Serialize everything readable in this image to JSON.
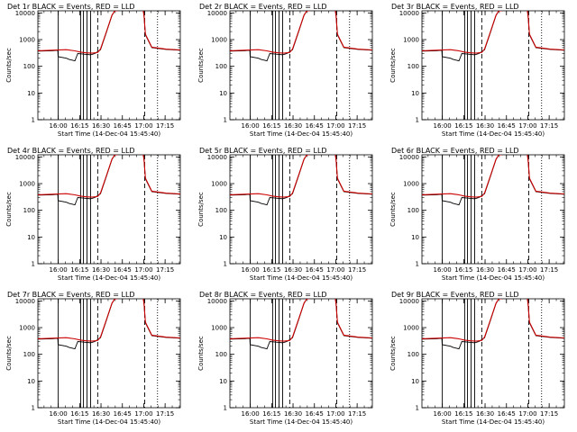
{
  "chart_data": {
    "type": "line",
    "layout": "3x3 grid",
    "title_template": "Det {n}r  BLACK = Events, RED = LLD",
    "panel_titles": [
      "Det 1r  BLACK = Events, RED = LLD",
      "Det 2r  BLACK = Events, RED = LLD",
      "Det 3r  BLACK = Events, RED = LLD",
      "Det 4r  BLACK = Events, RED = LLD",
      "Det 5r  BLACK = Events, RED = LLD",
      "Det 6r  BLACK = Events, RED = LLD",
      "Det 7r  BLACK = Events, RED = LLD",
      "Det 8r  BLACK = Events, RED = LLD",
      "Det 9r  BLACK = Events, RED = LLD"
    ],
    "xlabel": "Start Time (14-Dec-04 15:45:40)",
    "ylabel": "Counts/sec",
    "yscale": "log",
    "ylim": [
      1,
      12000
    ],
    "xlim_minutes_after_start": [
      0,
      100
    ],
    "x_ticks": [
      "16:00",
      "16:15",
      "16:30",
      "16:45",
      "17:00",
      "17:15"
    ],
    "x_tick_minutes": [
      14.33,
      29.33,
      44.33,
      59.33,
      74.33,
      89.33
    ],
    "y_ticks": [
      "1",
      "10",
      "100",
      "1000",
      "10000"
    ],
    "y_tick_values": [
      1,
      10,
      100,
      1000,
      10000
    ],
    "series": [
      {
        "name": "Events",
        "color": "#000000",
        "x": [
          0,
          10,
          14,
          14.2,
          20,
          22,
          24,
          26,
          28,
          31,
          34,
          37,
          40,
          44,
          48,
          52,
          54,
          56,
          56.5,
          74,
          74.5,
          75.5,
          80,
          90,
          100
        ],
        "y": [
          370,
          380,
          400,
          230,
          200,
          180,
          170,
          160,
          300,
          290,
          280,
          270,
          300,
          420,
          1800,
          8000,
          12000,
          12000,
          null,
          12000,
          8000,
          1500,
          500,
          430,
          400
        ]
      },
      {
        "name": "LLD",
        "color": "#cc0000",
        "x": [
          0,
          10,
          20,
          26,
          30,
          34,
          38,
          42,
          44,
          48,
          52,
          54,
          56,
          56.5,
          74,
          74.5,
          75.5,
          80,
          90,
          100
        ],
        "y": [
          380,
          400,
          420,
          380,
          340,
          320,
          310,
          330,
          450,
          1900,
          8200,
          12000,
          12000,
          null,
          12000,
          8300,
          1600,
          520,
          440,
          410
        ]
      }
    ],
    "vertical_markers": [
      {
        "x": 14.3,
        "style": "solid"
      },
      {
        "x": 30.0,
        "style": "solid"
      },
      {
        "x": 32.0,
        "style": "solid"
      },
      {
        "x": 34.5,
        "style": "solid"
      },
      {
        "x": 37.0,
        "style": "solid"
      },
      {
        "x": 42.0,
        "style": "dashed"
      },
      {
        "x": 75.0,
        "style": "dashed"
      },
      {
        "x": 84.0,
        "style": "dotted"
      }
    ]
  }
}
